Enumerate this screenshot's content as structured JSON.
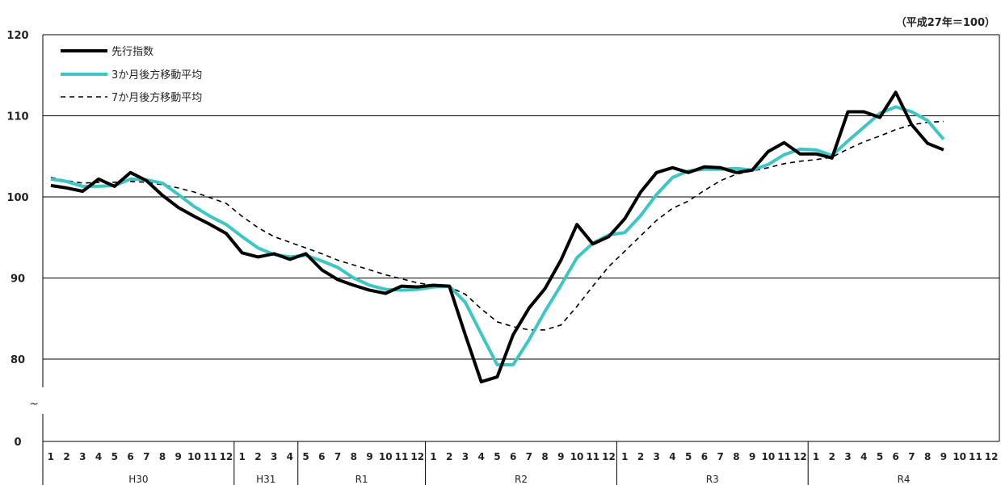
{
  "unit_note": "（平成27年＝100）",
  "axis_break_symbol": "~",
  "chart_data": {
    "type": "line",
    "ylim": [
      0,
      120
    ],
    "y_ticks": [
      0,
      80,
      90,
      100,
      110,
      120
    ],
    "axis_break": [
      0,
      75
    ],
    "grid": true,
    "legend_position": "top-left",
    "month_labels": [
      "1",
      "2",
      "3",
      "4",
      "5",
      "6",
      "7",
      "8",
      "9",
      "10",
      "11",
      "12",
      "1",
      "2",
      "3",
      "4",
      "5",
      "6",
      "7",
      "8",
      "9",
      "10",
      "11",
      "12",
      "1",
      "2",
      "3",
      "4",
      "5",
      "6",
      "7",
      "8",
      "9",
      "10",
      "11",
      "12",
      "1",
      "2",
      "3",
      "4",
      "5",
      "6",
      "7",
      "8",
      "9",
      "10",
      "11",
      "12",
      "1",
      "2",
      "3",
      "4",
      "5",
      "6",
      "7",
      "8",
      "9",
      "10",
      "11",
      "12"
    ],
    "era_groups": [
      {
        "label": "H30",
        "count": 12
      },
      {
        "label": "H31",
        "count": 4
      },
      {
        "label": "R1",
        "count": 8
      },
      {
        "label": "R2",
        "count": 12
      },
      {
        "label": "R3",
        "count": 12
      },
      {
        "label": "R4",
        "count": 12
      }
    ],
    "series": [
      {
        "name": "先行指数",
        "color": "#000000",
        "style": "solid-thick",
        "values": [
          101.4,
          101.1,
          100.7,
          102.2,
          101.3,
          103.0,
          102.0,
          100.2,
          98.7,
          97.6,
          96.6,
          95.5,
          93.1,
          92.6,
          93.0,
          92.3,
          93.0,
          91.0,
          89.8,
          89.1,
          88.5,
          88.1,
          89.0,
          88.9,
          89.1,
          89.0,
          83.0,
          77.2,
          77.8,
          83.0,
          86.3,
          88.7,
          92.2,
          96.6,
          94.2,
          95.1,
          97.3,
          100.6,
          103.0,
          103.6,
          103.0,
          103.7,
          103.6,
          103.0,
          103.3,
          105.6,
          106.7,
          105.3,
          105.3,
          104.8,
          110.5,
          110.5,
          109.8,
          112.9,
          108.9,
          106.6,
          105.8,
          null,
          null,
          null
        ]
      },
      {
        "name": "3か月後方移動平均",
        "color": "#3cc6c4",
        "style": "solid-thick",
        "values": [
          102.2,
          101.9,
          101.3,
          101.3,
          101.4,
          102.2,
          102.1,
          101.7,
          100.3,
          98.8,
          97.6,
          96.6,
          95.1,
          93.7,
          92.9,
          92.6,
          92.8,
          92.1,
          91.3,
          90.0,
          89.1,
          88.6,
          88.5,
          88.6,
          88.9,
          89.0,
          87.0,
          83.1,
          79.3,
          79.3,
          82.4,
          85.9,
          89.1,
          92.5,
          94.3,
          95.3,
          95.6,
          97.7,
          100.3,
          102.4,
          103.2,
          103.4,
          103.4,
          103.5,
          103.3,
          104.0,
          105.2,
          105.9,
          105.8,
          105.1,
          106.9,
          108.6,
          110.3,
          111.1,
          110.5,
          109.4,
          107.1,
          null,
          null,
          null
        ]
      },
      {
        "name": "7か月後方移動平均",
        "color": "#000000",
        "style": "dashed",
        "values": [
          102.4,
          102.0,
          101.7,
          101.8,
          101.8,
          101.9,
          101.8,
          101.5,
          101.1,
          100.6,
          99.9,
          99.2,
          97.6,
          96.2,
          95.1,
          94.4,
          93.7,
          93.0,
          92.2,
          91.6,
          91.0,
          90.4,
          89.9,
          89.4,
          89.1,
          88.9,
          88.0,
          86.2,
          84.6,
          84.0,
          83.6,
          83.6,
          84.2,
          86.5,
          89.0,
          91.4,
          93.3,
          95.2,
          97.1,
          98.6,
          99.5,
          100.8,
          102.0,
          102.8,
          103.2,
          103.6,
          104.1,
          104.4,
          104.6,
          104.9,
          105.9,
          106.8,
          107.5,
          108.3,
          108.9,
          109.2,
          109.3,
          null,
          null,
          null
        ]
      }
    ]
  }
}
